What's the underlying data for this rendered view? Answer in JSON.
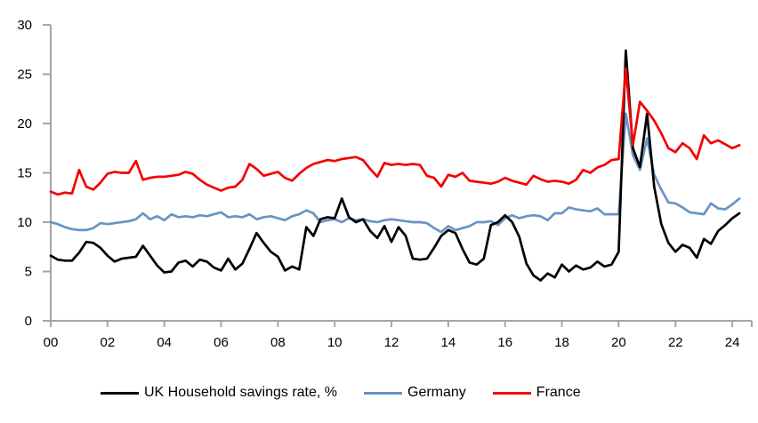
{
  "chart_data": {
    "type": "line",
    "title": "",
    "xlabel": "",
    "ylabel": "",
    "grid": false,
    "legend_position": "bottom",
    "axis_color": "#A6A6A6",
    "ylim": [
      0,
      30
    ],
    "y_ticks": [
      0,
      5,
      10,
      15,
      20,
      25,
      30
    ],
    "y_tick_labels": [
      "0",
      "5",
      "10",
      "15",
      "20",
      "25",
      "30"
    ],
    "x_tick_labels": [
      "00",
      "02",
      "04",
      "06",
      "08",
      "10",
      "12",
      "14",
      "16",
      "18",
      "20",
      "22",
      "24"
    ],
    "x_start_year": 2000,
    "points_per_year": 4,
    "x_note": "quarterly data 2000Q1-2024Q2",
    "series": [
      {
        "name": "UK Household savings rate, %",
        "color": "#000000",
        "values": [
          6.6,
          6.2,
          6.1,
          6.1,
          6.9,
          8.0,
          7.9,
          7.4,
          6.6,
          6.0,
          6.3,
          6.4,
          6.5,
          7.6,
          6.6,
          5.6,
          4.9,
          5.0,
          5.9,
          6.1,
          5.5,
          6.2,
          6.0,
          5.4,
          5.1,
          6.3,
          5.2,
          5.8,
          7.3,
          8.9,
          7.9,
          7.0,
          6.5,
          5.1,
          5.5,
          5.2,
          9.5,
          8.6,
          10.3,
          10.5,
          10.4,
          12.4,
          10.5,
          10.0,
          10.3,
          9.1,
          8.4,
          9.6,
          8.0,
          9.5,
          8.6,
          6.3,
          6.2,
          6.3,
          7.4,
          8.6,
          9.2,
          8.9,
          7.3,
          5.9,
          5.7,
          6.3,
          9.7,
          10.0,
          10.7,
          10.0,
          8.5,
          5.8,
          4.6,
          4.1,
          4.8,
          4.4,
          5.7,
          5.0,
          5.6,
          5.2,
          5.4,
          6.0,
          5.5,
          5.7,
          7.0,
          27.4,
          17.5,
          15.6,
          21.0,
          13.6,
          9.8,
          7.9,
          7.0,
          7.7,
          7.4,
          6.4,
          8.3,
          7.8,
          9.1,
          9.7,
          10.4,
          10.9
        ]
      },
      {
        "name": "Germany",
        "color": "#6A93C3",
        "values": [
          10.0,
          9.8,
          9.5,
          9.3,
          9.2,
          9.2,
          9.4,
          9.9,
          9.8,
          9.9,
          10.0,
          10.1,
          10.3,
          10.9,
          10.3,
          10.6,
          10.2,
          10.8,
          10.5,
          10.6,
          10.5,
          10.7,
          10.6,
          10.8,
          11.0,
          10.5,
          10.6,
          10.5,
          10.8,
          10.3,
          10.5,
          10.6,
          10.4,
          10.2,
          10.6,
          10.8,
          11.2,
          10.9,
          10.0,
          10.2,
          10.3,
          10.0,
          10.4,
          10.2,
          10.3,
          10.1,
          10.0,
          10.2,
          10.3,
          10.2,
          10.1,
          10.0,
          10.0,
          9.9,
          9.4,
          9.0,
          9.6,
          9.2,
          9.4,
          9.6,
          10.0,
          10.0,
          10.1,
          9.7,
          10.4,
          10.7,
          10.4,
          10.6,
          10.7,
          10.6,
          10.2,
          10.9,
          10.9,
          11.5,
          11.3,
          11.2,
          11.1,
          11.4,
          10.8,
          10.8,
          10.8,
          21.0,
          16.8,
          15.3,
          18.5,
          14.8,
          13.3,
          12.0,
          11.9,
          11.5,
          11.0,
          10.9,
          10.8,
          11.9,
          11.4,
          11.3,
          11.8,
          12.4
        ]
      },
      {
        "name": "France",
        "color": "#F40000",
        "values": [
          13.1,
          12.8,
          13.0,
          12.9,
          15.3,
          13.6,
          13.3,
          14.0,
          14.9,
          15.1,
          15.0,
          15.0,
          16.2,
          14.3,
          14.5,
          14.6,
          14.6,
          14.7,
          14.8,
          15.1,
          14.9,
          14.3,
          13.8,
          13.5,
          13.2,
          13.5,
          13.6,
          14.3,
          15.9,
          15.4,
          14.7,
          14.9,
          15.1,
          14.5,
          14.2,
          14.9,
          15.5,
          15.9,
          16.1,
          16.3,
          16.2,
          16.4,
          16.5,
          16.6,
          16.3,
          15.4,
          14.6,
          16.0,
          15.8,
          15.9,
          15.8,
          15.9,
          15.8,
          14.7,
          14.5,
          13.6,
          14.8,
          14.6,
          15.0,
          14.2,
          14.1,
          14.0,
          13.9,
          14.1,
          14.5,
          14.2,
          14.0,
          13.8,
          14.7,
          14.35,
          14.1,
          14.2,
          14.1,
          13.9,
          14.3,
          15.3,
          15.0,
          15.55,
          15.8,
          16.3,
          16.4,
          25.6,
          17.8,
          22.2,
          21.3,
          20.3,
          19.0,
          17.5,
          17.1,
          18.0,
          17.5,
          16.4,
          18.8,
          18.0,
          18.3,
          17.9,
          17.5,
          17.8
        ]
      }
    ]
  }
}
